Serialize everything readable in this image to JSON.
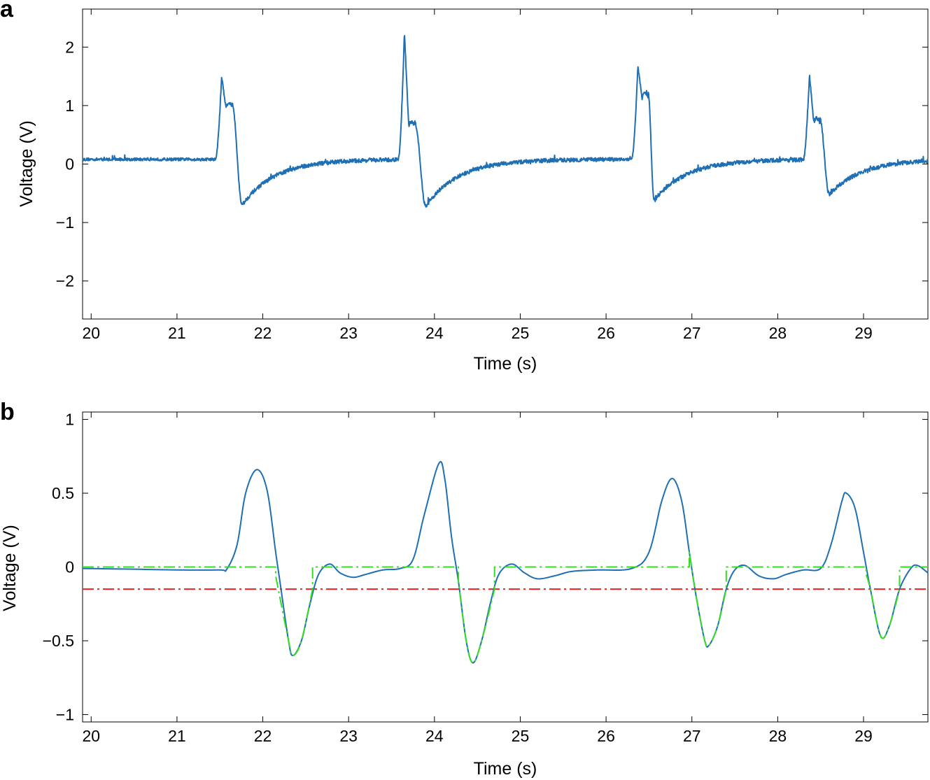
{
  "chart_data": [
    {
      "panel": "a",
      "type": "line",
      "xlabel": "Time (s)",
      "ylabel": "Voltage (V)",
      "xlim": [
        19.9,
        29.75
      ],
      "ylim": [
        -2.65,
        2.65
      ],
      "xticks": [
        20,
        21,
        22,
        23,
        24,
        25,
        26,
        27,
        28,
        29
      ],
      "xtick_labels": [
        "20",
        "21",
        "22",
        "23",
        "24",
        "25",
        "26",
        "27",
        "28",
        "29"
      ],
      "yticks": [
        2,
        1,
        0,
        -1,
        -2
      ],
      "ytick_labels": [
        "2",
        "1",
        "0",
        "−1",
        "−2"
      ],
      "grid": false,
      "baseline": 0.08,
      "events": [
        {
          "onset": 21.45,
          "peak_time": 21.52,
          "peak": 1.5,
          "shoulder": 1.05,
          "trough_time": 21.76,
          "trough": -0.7
        },
        {
          "onset": 23.58,
          "peak_time": 23.65,
          "peak": 2.27,
          "shoulder": 0.72,
          "trough_time": 23.9,
          "trough": -0.72
        },
        {
          "onset": 26.3,
          "peak_time": 26.37,
          "peak": 1.68,
          "shoulder": 1.22,
          "trough_time": 26.56,
          "trough": -0.62
        },
        {
          "onset": 28.3,
          "peak_time": 28.37,
          "peak": 1.53,
          "shoulder": 0.78,
          "trough_time": 28.6,
          "trough": -0.52
        }
      ],
      "series": [
        {
          "values_described_by": "events",
          "color": "#1f6fb4",
          "style": "solid"
        }
      ]
    },
    {
      "panel": "b",
      "type": "line",
      "xlabel": "Time (s)",
      "ylabel": "Voltage (V)",
      "xlim": [
        19.9,
        29.75
      ],
      "ylim": [
        -1.05,
        1.05
      ],
      "xticks": [
        20,
        21,
        22,
        23,
        24,
        25,
        26,
        27,
        28,
        29
      ],
      "xtick_labels": [
        "20",
        "21",
        "22",
        "23",
        "24",
        "25",
        "26",
        "27",
        "28",
        "29"
      ],
      "yticks": [
        1,
        0.5,
        0,
        -0.5,
        -1
      ],
      "ytick_labels": [
        "1",
        "0.5",
        "0",
        "−0.5",
        "−1"
      ],
      "grid": false,
      "series": [
        {
          "color": "#1f6fb4",
          "style": "solid",
          "points": [
            [
              19.9,
              -0.01
            ],
            [
              20.5,
              -0.015
            ],
            [
              21.0,
              -0.02
            ],
            [
              21.5,
              -0.02
            ],
            [
              21.58,
              -0.015
            ],
            [
              21.7,
              0.15
            ],
            [
              21.8,
              0.5
            ],
            [
              21.93,
              0.66
            ],
            [
              22.05,
              0.52
            ],
            [
              22.15,
              0.1
            ],
            [
              22.2,
              -0.1
            ],
            [
              22.3,
              -0.5
            ],
            [
              22.35,
              -0.6
            ],
            [
              22.45,
              -0.5
            ],
            [
              22.55,
              -0.25
            ],
            [
              22.65,
              -0.05
            ],
            [
              22.78,
              0.02
            ],
            [
              22.9,
              -0.04
            ],
            [
              23.05,
              -0.07
            ],
            [
              23.2,
              -0.05
            ],
            [
              23.4,
              -0.02
            ],
            [
              23.6,
              -0.01
            ],
            [
              23.75,
              0.05
            ],
            [
              23.88,
              0.35
            ],
            [
              24.05,
              0.7
            ],
            [
              24.12,
              0.6
            ],
            [
              24.2,
              0.2
            ],
            [
              24.28,
              -0.1
            ],
            [
              24.37,
              -0.5
            ],
            [
              24.45,
              -0.65
            ],
            [
              24.55,
              -0.5
            ],
            [
              24.65,
              -0.25
            ],
            [
              24.75,
              -0.05
            ],
            [
              24.9,
              0.02
            ],
            [
              25.05,
              -0.04
            ],
            [
              25.2,
              -0.08
            ],
            [
              25.4,
              -0.06
            ],
            [
              25.6,
              -0.03
            ],
            [
              25.9,
              -0.02
            ],
            [
              26.3,
              -0.01
            ],
            [
              26.5,
              0.1
            ],
            [
              26.65,
              0.45
            ],
            [
              26.77,
              0.6
            ],
            [
              26.88,
              0.45
            ],
            [
              26.97,
              0.1
            ],
            [
              27.05,
              -0.2
            ],
            [
              27.15,
              -0.5
            ],
            [
              27.2,
              -0.53
            ],
            [
              27.3,
              -0.4
            ],
            [
              27.4,
              -0.15
            ],
            [
              27.5,
              -0.02
            ],
            [
              27.62,
              0.01
            ],
            [
              27.78,
              -0.06
            ],
            [
              27.95,
              -0.08
            ],
            [
              28.1,
              -0.05
            ],
            [
              28.3,
              -0.02
            ],
            [
              28.5,
              -0.01
            ],
            [
              28.62,
              0.15
            ],
            [
              28.75,
              0.45
            ],
            [
              28.8,
              0.5
            ],
            [
              28.9,
              0.4
            ],
            [
              29.0,
              0.1
            ],
            [
              29.08,
              -0.15
            ],
            [
              29.2,
              -0.47
            ],
            [
              29.3,
              -0.4
            ],
            [
              29.42,
              -0.15
            ],
            [
              29.55,
              -0.01
            ],
            [
              29.63,
              0.01
            ],
            [
              29.75,
              -0.04
            ]
          ]
        },
        {
          "color": "#33dd22",
          "style": "dashdot",
          "points": [
            [
              19.9,
              0.0
            ],
            [
              22.15,
              0.0
            ],
            [
              22.15,
              -0.06
            ],
            [
              22.3,
              -0.5
            ],
            [
              22.35,
              -0.6
            ],
            [
              22.45,
              -0.5
            ],
            [
              22.58,
              -0.15
            ],
            [
              22.58,
              0.0
            ],
            [
              24.28,
              0.0
            ],
            [
              24.28,
              -0.1
            ],
            [
              24.37,
              -0.5
            ],
            [
              24.45,
              -0.65
            ],
            [
              24.55,
              -0.5
            ],
            [
              24.7,
              -0.15
            ],
            [
              24.7,
              0.0
            ],
            [
              26.97,
              0.0
            ],
            [
              26.97,
              0.1
            ],
            [
              27.05,
              -0.2
            ],
            [
              27.15,
              -0.5
            ],
            [
              27.2,
              -0.53
            ],
            [
              27.3,
              -0.4
            ],
            [
              27.4,
              -0.15
            ],
            [
              27.4,
              0.0
            ],
            [
              29.03,
              0.0
            ],
            [
              29.03,
              -0.05
            ],
            [
              29.08,
              -0.15
            ],
            [
              29.2,
              -0.47
            ],
            [
              29.3,
              -0.4
            ],
            [
              29.42,
              -0.15
            ],
            [
              29.42,
              0.0
            ],
            [
              29.75,
              0.0
            ]
          ]
        },
        {
          "color": "#ee2222",
          "style": "dashdot",
          "points": [
            [
              19.9,
              -0.15
            ],
            [
              29.75,
              -0.15
            ]
          ]
        }
      ]
    }
  ],
  "panels": {
    "a": {
      "letter": "a"
    },
    "b": {
      "letter": "b"
    }
  }
}
